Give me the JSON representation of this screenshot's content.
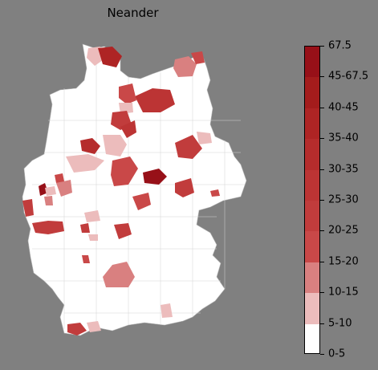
{
  "title": "Neander",
  "legend": {
    "labels": [
      "0-5",
      "5-10",
      "10-15",
      "15-20",
      "20-25",
      "25-30",
      "30-35",
      "35-40",
      "40-45",
      "45-67.5",
      "67.5"
    ],
    "colors": [
      "#ffffff",
      "#ecbcbc",
      "#d98080",
      "#c94848",
      "#c13c3c",
      "#bc3434",
      "#b52c2c",
      "#ae2424",
      "#a41c1c",
      "#971018"
    ]
  },
  "map": {
    "background": "#808080",
    "base_color": "#ffffff",
    "border_color": "#c8c8c8"
  }
}
